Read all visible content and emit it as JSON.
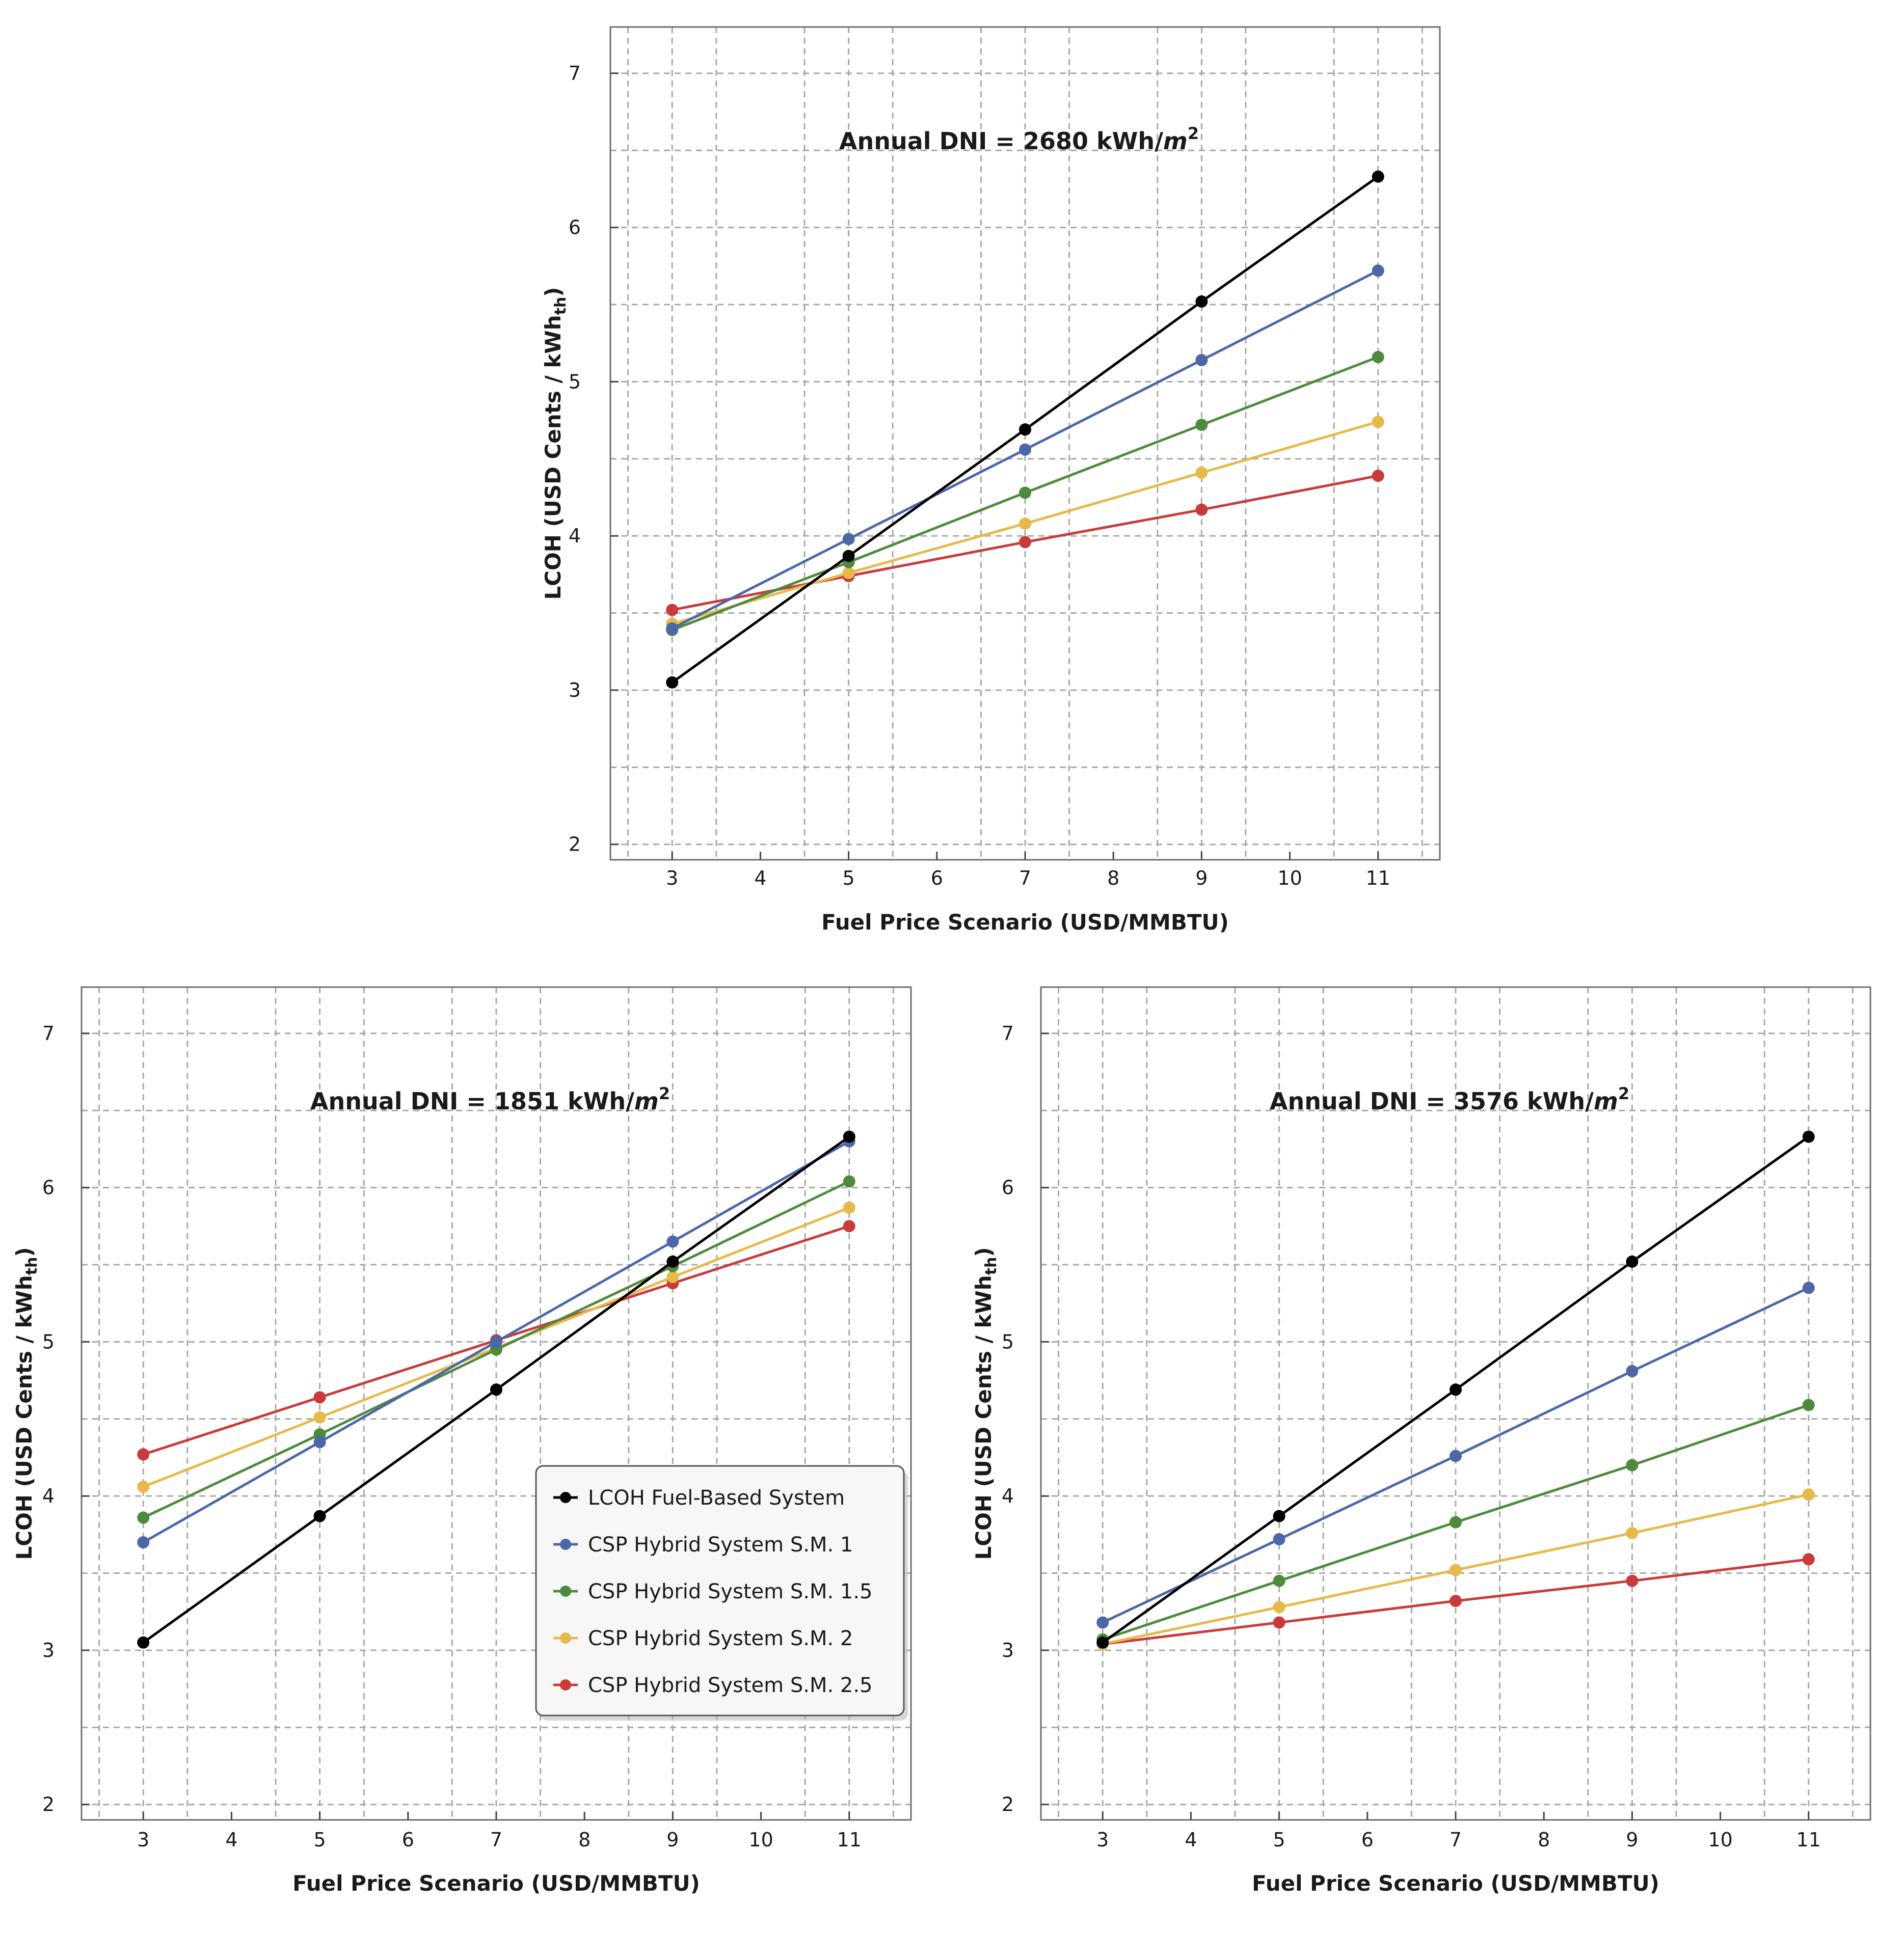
{
  "chart_data": [
    {
      "type": "line",
      "id": "top",
      "title": "Annual DNI = 2680 kWh/",
      "title_unit": "m",
      "title_sup": "2",
      "xlabel": "Fuel Price Scenario (USD/MMBTU)",
      "ylabel": "LCOH (USD Cents / kWh",
      "ylabel_sub": "th",
      "ylabel_end": ")",
      "x": [
        3,
        5,
        7,
        9,
        11
      ],
      "xticks": [
        3,
        4,
        5,
        6,
        7,
        8,
        9,
        10,
        11
      ],
      "yticks": [
        2,
        3,
        4,
        5,
        6,
        7
      ],
      "xlim": [
        2.3,
        11.7
      ],
      "ylim": [
        1.9,
        7.3
      ],
      "grid": true,
      "series": [
        {
          "name": "LCOH Fuel-Based System",
          "values": [
            3.05,
            3.87,
            4.69,
            5.52,
            6.33
          ]
        },
        {
          "name": "CSP Hybrid System S.M. 1",
          "values": [
            3.4,
            3.98,
            4.56,
            5.14,
            5.72
          ]
        },
        {
          "name": "CSP Hybrid System S.M. 1.5",
          "values": [
            3.39,
            3.83,
            4.28,
            4.72,
            5.16
          ]
        },
        {
          "name": "CSP Hybrid System S.M. 2",
          "values": [
            3.43,
            3.76,
            4.08,
            4.41,
            4.74
          ]
        },
        {
          "name": "CSP Hybrid System S.M. 2.5",
          "values": [
            3.52,
            3.74,
            3.96,
            4.17,
            4.39
          ]
        }
      ]
    },
    {
      "type": "line",
      "id": "bottom-left",
      "title": "Annual DNI = 1851 kWh/",
      "title_unit": "m",
      "title_sup": "2",
      "xlabel": "Fuel Price Scenario (USD/MMBTU)",
      "ylabel": "LCOH (USD Cents / kWh",
      "ylabel_sub": "th",
      "ylabel_end": ")",
      "x": [
        3,
        5,
        7,
        9,
        11
      ],
      "xticks": [
        3,
        4,
        5,
        6,
        7,
        8,
        9,
        10,
        11
      ],
      "yticks": [
        2,
        3,
        4,
        5,
        6,
        7
      ],
      "xlim": [
        2.3,
        11.7
      ],
      "ylim": [
        1.9,
        7.3
      ],
      "grid": true,
      "legend": "bottom-right",
      "series": [
        {
          "name": "LCOH Fuel-Based System",
          "values": [
            3.05,
            3.87,
            4.69,
            5.52,
            6.33
          ]
        },
        {
          "name": "CSP Hybrid System S.M. 1",
          "values": [
            3.7,
            4.35,
            5.0,
            5.65,
            6.3
          ]
        },
        {
          "name": "CSP Hybrid System S.M. 1.5",
          "values": [
            3.86,
            4.4,
            4.95,
            5.49,
            6.04
          ]
        },
        {
          "name": "CSP Hybrid System S.M. 2",
          "values": [
            4.06,
            4.51,
            4.96,
            5.42,
            5.87
          ]
        },
        {
          "name": "CSP Hybrid System S.M. 2.5",
          "values": [
            4.27,
            4.64,
            5.01,
            5.38,
            5.75
          ]
        }
      ]
    },
    {
      "type": "line",
      "id": "bottom-right",
      "title": "Annual DNI = 3576 kWh/",
      "title_unit": "m",
      "title_sup": "2",
      "xlabel": "Fuel Price Scenario (USD/MMBTU)",
      "ylabel": "LCOH (USD Cents / kWh",
      "ylabel_sub": "th",
      "ylabel_end": ")",
      "x": [
        3,
        5,
        7,
        9,
        11
      ],
      "xticks": [
        3,
        4,
        5,
        6,
        7,
        8,
        9,
        10,
        11
      ],
      "yticks": [
        2,
        3,
        4,
        5,
        6,
        7
      ],
      "xlim": [
        2.3,
        11.7
      ],
      "ylim": [
        1.9,
        7.3
      ],
      "grid": true,
      "series": [
        {
          "name": "LCOH Fuel-Based System",
          "values": [
            3.05,
            3.87,
            4.69,
            5.52,
            6.33
          ]
        },
        {
          "name": "CSP Hybrid System S.M. 1",
          "values": [
            3.18,
            3.72,
            4.26,
            4.81,
            5.35
          ]
        },
        {
          "name": "CSP Hybrid System S.M. 1.5",
          "values": [
            3.07,
            3.45,
            3.83,
            4.2,
            4.59
          ]
        },
        {
          "name": "CSP Hybrid System S.M. 2",
          "values": [
            3.04,
            3.28,
            3.52,
            3.76,
            4.01
          ]
        },
        {
          "name": "CSP Hybrid System S.M. 2.5",
          "values": [
            3.04,
            3.18,
            3.32,
            3.45,
            3.59
          ]
        }
      ]
    }
  ],
  "colors": {
    "LCOH Fuel-Based System": "#000000",
    "CSP Hybrid System S.M. 1": "#4c66a8",
    "CSP Hybrid System S.M. 1.5": "#4e8a3c",
    "CSP Hybrid System S.M. 2": "#e6b94a",
    "CSP Hybrid System S.M. 2.5": "#c93a3a",
    "grid": "#a8a8a8",
    "frame": "#6e6e6e"
  }
}
